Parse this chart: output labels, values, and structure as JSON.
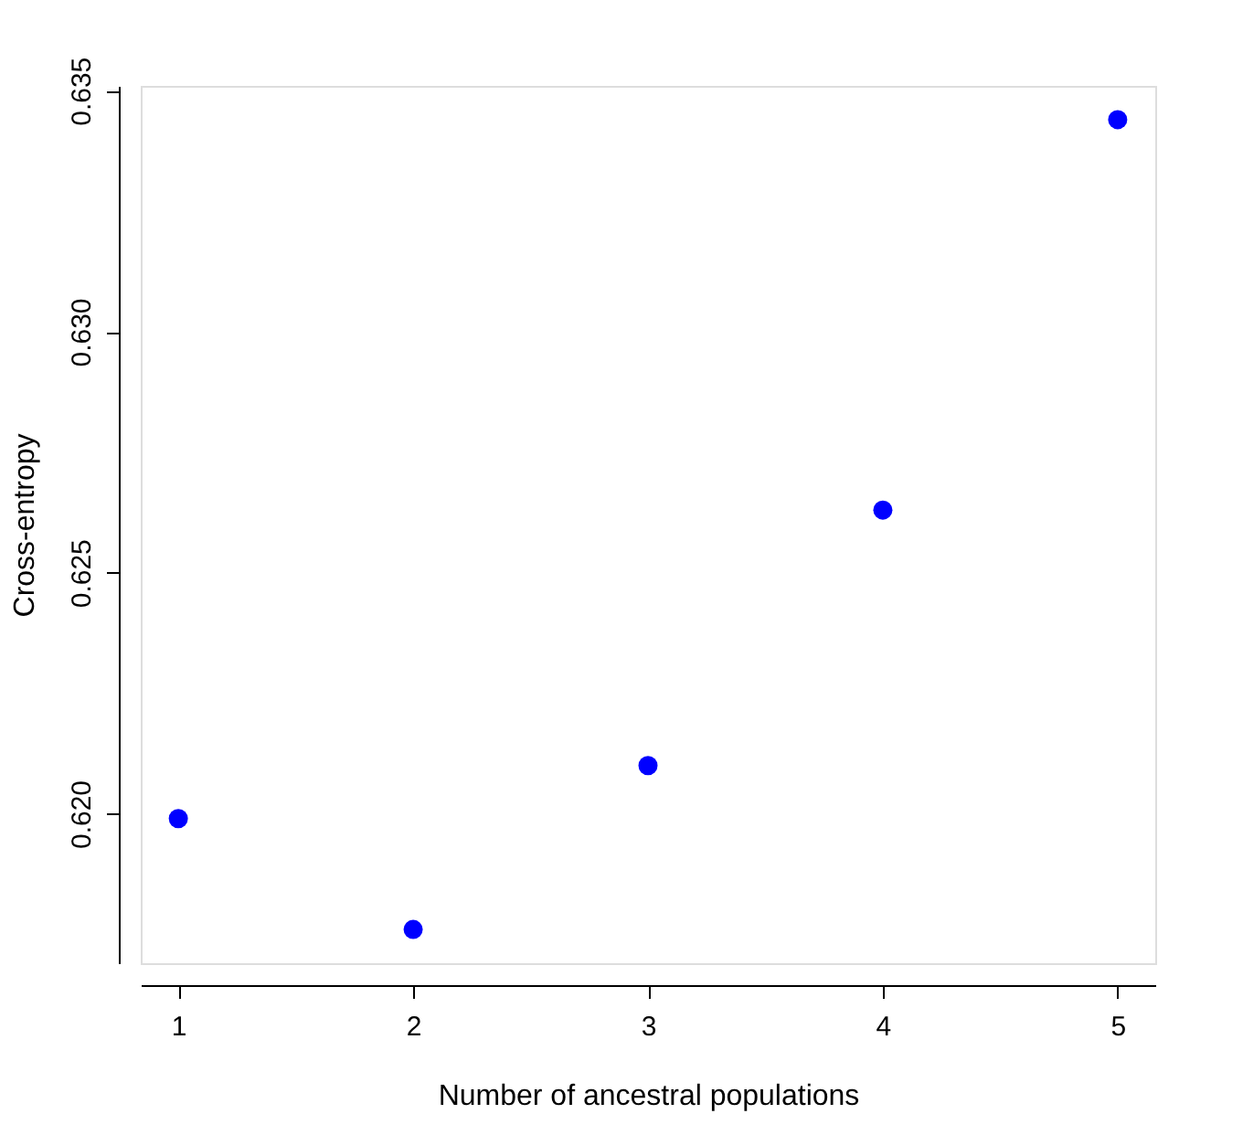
{
  "chart_data": {
    "type": "scatter",
    "xlabel": "Number of ancestral populations",
    "ylabel": "Cross-entropy",
    "x": [
      1,
      2,
      3,
      4,
      5
    ],
    "values": [
      0.6199,
      0.6176,
      0.621,
      0.6263,
      0.6344
    ],
    "color": "#0000ff",
    "marker": "circle",
    "grid": false,
    "xlim": [
      0.84,
      5.16
    ],
    "ylim": [
      0.6169,
      0.6351
    ],
    "xticks": [
      1,
      2,
      3,
      4,
      5
    ],
    "yticks": [
      {
        "value": 0.62,
        "label": "0.620"
      },
      {
        "value": 0.625,
        "label": "0.625"
      },
      {
        "value": 0.63,
        "label": "0.630"
      },
      {
        "value": 0.635,
        "label": "0.635"
      }
    ]
  }
}
